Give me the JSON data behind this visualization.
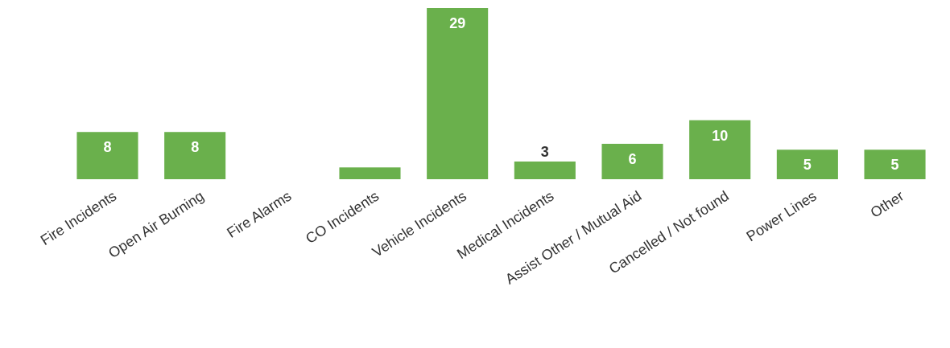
{
  "chart_data": {
    "type": "bar",
    "categories": [
      "Fire Incidents",
      "Open Air Burning",
      "Fire Alarms",
      "CO Incidents",
      "Vehicle Incidents",
      "Medical Incidents",
      "Assist Other / Mutual Aid",
      "Cancelled / Not found",
      "Power Lines",
      "Other"
    ],
    "values": [
      8,
      8,
      0,
      2,
      29,
      3,
      6,
      10,
      5,
      5
    ],
    "value_labels": [
      "8",
      "8",
      null,
      null,
      "29",
      "3",
      "6",
      "10",
      "5",
      "5"
    ],
    "color": "#6ab04c"
  }
}
